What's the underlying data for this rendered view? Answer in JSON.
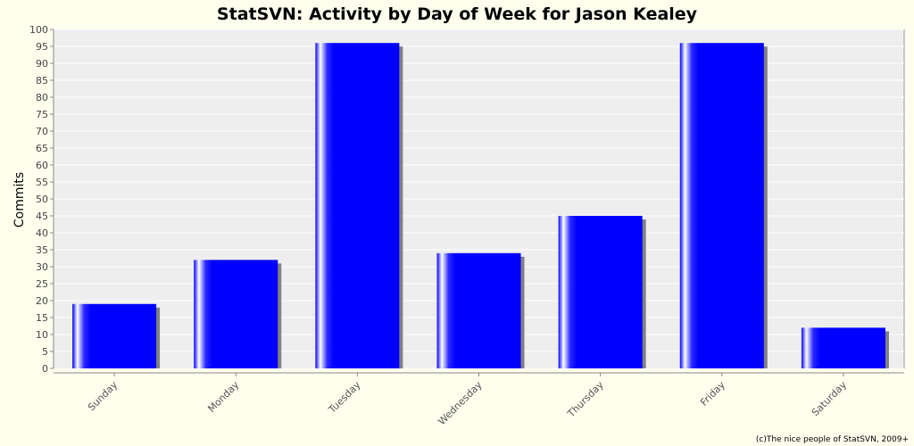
{
  "chart_data": {
    "type": "bar",
    "title": "StatSVN: Activity by Day of Week for Jason Kealey",
    "xlabel": "",
    "ylabel": "Commits",
    "categories": [
      "Sunday",
      "Monday",
      "Tuesday",
      "Wednesday",
      "Thursday",
      "Friday",
      "Saturday"
    ],
    "values": [
      19,
      32,
      96,
      34,
      45,
      96,
      12
    ],
    "ylim": [
      0,
      100
    ],
    "ytick_step": 5,
    "grid": true,
    "legend": "none",
    "colors": {
      "bar": "#0000ff",
      "highlight": "#ffffff",
      "shadow": "#808080",
      "plot_background": "#eeeeee",
      "page_background": "#ffffee",
      "gridline": "#ffffff"
    }
  },
  "footer": "(c)The nice people of StatSVN, 2009+"
}
